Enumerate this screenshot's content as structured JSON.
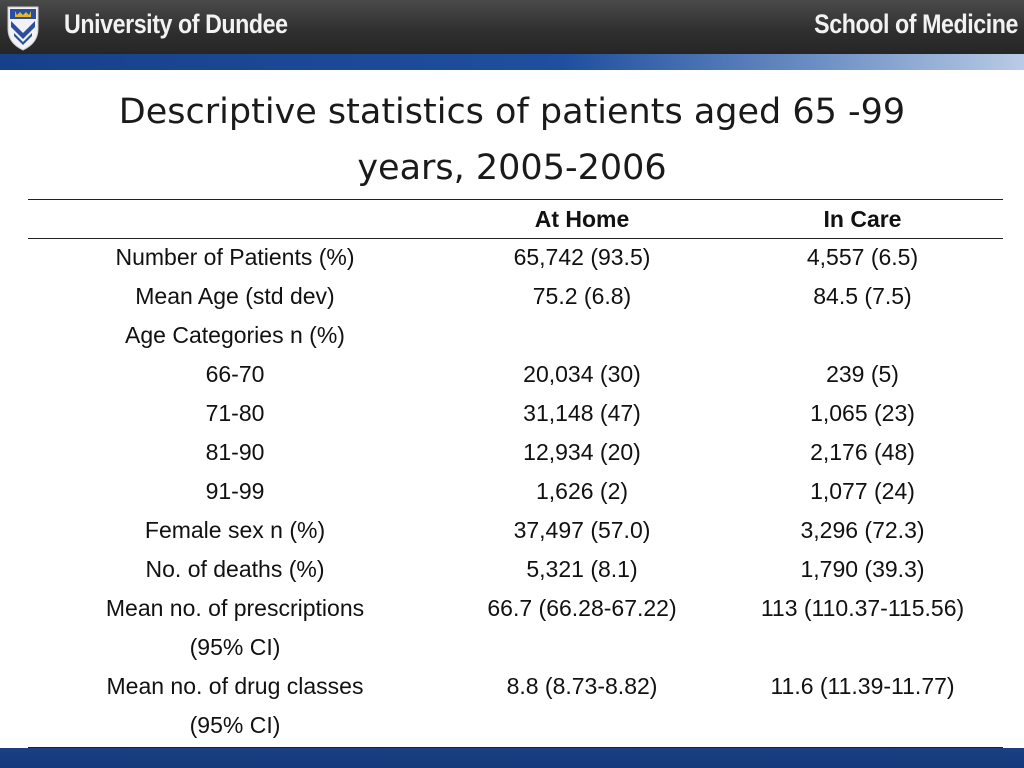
{
  "header": {
    "university": "University of Dundee",
    "school": "School of Medicine"
  },
  "colors": {
    "header_bg": "#333333",
    "accent_blue": "#1f4f9e"
  },
  "slide": {
    "title_line1": "Descriptive statistics of patients aged 65 -99",
    "title_line2": "years, 2005-2006"
  },
  "table": {
    "columns": [
      "",
      "At Home",
      "In Care"
    ],
    "rows": [
      {
        "label": "Number of Patients (%)",
        "home": "65,742 (93.5)",
        "care": "4,557 (6.5)"
      },
      {
        "label": "Mean Age (std dev)",
        "home": "75.2 (6.8)",
        "care": "84.5 (7.5)"
      },
      {
        "label": "Age Categories n (%)",
        "home": "",
        "care": ""
      },
      {
        "label": "66-70",
        "home": "20,034 (30)",
        "care": "239 (5)"
      },
      {
        "label": "71-80",
        "home": "31,148 (47)",
        "care": "1,065 (23)"
      },
      {
        "label": "81-90",
        "home": "12,934 (20)",
        "care": "2,176 (48)"
      },
      {
        "label": "91-99",
        "home": "1,626 (2)",
        "care": "1,077 (24)"
      },
      {
        "label": "Female sex n (%)",
        "home": "37,497 (57.0)",
        "care": "3,296 (72.3)"
      },
      {
        "label": "No. of deaths (%)",
        "home": "5,321 (8.1)",
        "care": "1,790 (39.3)"
      },
      {
        "label": "Mean no. of prescriptions",
        "home": "66.7 (66.28-67.22)",
        "care": "113 (110.37-115.56)"
      },
      {
        "label": "(95% CI)",
        "home": "",
        "care": ""
      },
      {
        "label": "Mean no. of drug classes",
        "home": "8.8 (8.73-8.82)",
        "care": "11.6 (11.39-11.77)"
      },
      {
        "label": "(95% CI)",
        "home": "",
        "care": ""
      }
    ]
  }
}
